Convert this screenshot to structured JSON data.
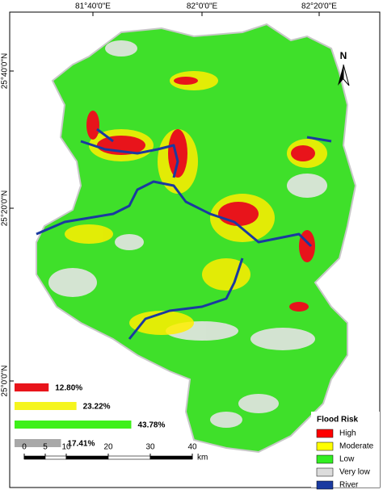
{
  "map": {
    "top_labels": [
      "81°40'0\"E",
      "82°0'0\"E",
      "82°20'0\"E"
    ],
    "left_labels": [
      "25°40'0\"N",
      "25°20'0\"N",
      "25°0'0\"N"
    ],
    "north": "N"
  },
  "risk_bars": {
    "values": [
      12.8,
      23.22,
      43.78,
      17.41
    ],
    "value_labels": [
      "12.80%",
      "23.22%",
      "43.78%",
      "17.41%"
    ],
    "colors": [
      "#e8141b",
      "#f5f51e",
      "#3ef01a",
      "#a8a8a8"
    ]
  },
  "legend": {
    "title": "Flood Risk",
    "items": [
      {
        "label": "High",
        "color": "#ff0000"
      },
      {
        "label": "Moderate",
        "color": "#ffff00"
      },
      {
        "label": "Low",
        "color": "#33ee22"
      },
      {
        "label": "Very low",
        "color": "#dcdcdc"
      },
      {
        "label": "River",
        "color": "#1a3aa0"
      }
    ]
  },
  "scale_bar": {
    "ticks": [
      0,
      5,
      10,
      20,
      30,
      40
    ],
    "unit": "km"
  }
}
